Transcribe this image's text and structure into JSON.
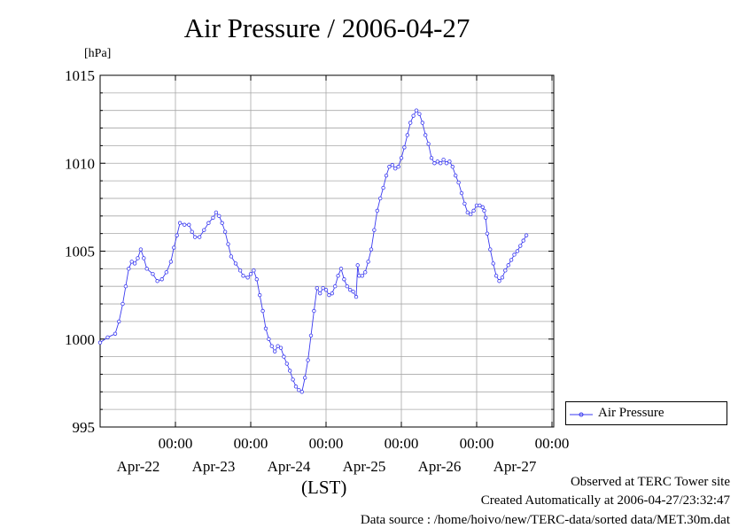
{
  "title": "Air Pressure / 2006-04-27",
  "footer": {
    "line1": "Observed at TERC Tower site",
    "line2": "Created Automatically at 2006-04-27/23:32:47",
    "line3": "Data source : /home/hoivo/new/TERC-data/sorted  data/MET.30m.dat"
  },
  "chart_data": {
    "type": "line",
    "title": "Air Pressure / 2006-04-27",
    "ylabel": "[hPa]",
    "xlabel": "(LST)",
    "ylim": [
      995,
      1015
    ],
    "xlim": [
      -1,
      5
    ],
    "x_unit": "days (00:00 of Apr-22 = 0)",
    "yticks": [
      995,
      1000,
      1005,
      1010,
      1015
    ],
    "xticks": [
      {
        "x": 0,
        "time": "00:00",
        "date": "Apr-22"
      },
      {
        "x": 1,
        "time": "00:00",
        "date": "Apr-23"
      },
      {
        "x": 2,
        "time": "00:00",
        "date": "Apr-24"
      },
      {
        "x": 3,
        "time": "00:00",
        "date": "Apr-25"
      },
      {
        "x": 4,
        "time": "00:00",
        "date": "Apr-26"
      },
      {
        "x": 5,
        "time": "00:00",
        "date": "Apr-27"
      }
    ],
    "grid": true,
    "legend": "right",
    "series": [
      {
        "name": "Air Pressure",
        "color": "#3a3af0",
        "marker": "circle",
        "points": [
          [
            -1.0,
            999.8
          ],
          [
            -0.9,
            1000.1
          ],
          [
            -0.8,
            1000.3
          ],
          [
            -0.75,
            1001.0
          ],
          [
            -0.7,
            1002.0
          ],
          [
            -0.66,
            1003.0
          ],
          [
            -0.62,
            1004.0
          ],
          [
            -0.58,
            1004.4
          ],
          [
            -0.54,
            1004.3
          ],
          [
            -0.5,
            1004.6
          ],
          [
            -0.46,
            1005.1
          ],
          [
            -0.42,
            1004.6
          ],
          [
            -0.38,
            1004.0
          ],
          [
            -0.3,
            1003.7
          ],
          [
            -0.24,
            1003.3
          ],
          [
            -0.18,
            1003.4
          ],
          [
            -0.12,
            1003.8
          ],
          [
            -0.06,
            1004.4
          ],
          [
            -0.02,
            1005.2
          ],
          [
            0.02,
            1005.9
          ],
          [
            0.06,
            1006.6
          ],
          [
            0.12,
            1006.5
          ],
          [
            0.18,
            1006.5
          ],
          [
            0.22,
            1006.1
          ],
          [
            0.26,
            1005.8
          ],
          [
            0.32,
            1005.8
          ],
          [
            0.38,
            1006.2
          ],
          [
            0.44,
            1006.6
          ],
          [
            0.5,
            1006.9
          ],
          [
            0.54,
            1007.2
          ],
          [
            0.58,
            1007.0
          ],
          [
            0.62,
            1006.6
          ],
          [
            0.66,
            1006.1
          ],
          [
            0.7,
            1005.4
          ],
          [
            0.74,
            1004.7
          ],
          [
            0.8,
            1004.3
          ],
          [
            0.86,
            1003.9
          ],
          [
            0.9,
            1003.6
          ],
          [
            0.96,
            1003.5
          ],
          [
            1.0,
            1003.7
          ],
          [
            1.04,
            1003.9
          ],
          [
            1.08,
            1003.4
          ],
          [
            1.12,
            1002.5
          ],
          [
            1.16,
            1001.6
          ],
          [
            1.2,
            1000.6
          ],
          [
            1.24,
            1000.0
          ],
          [
            1.28,
            999.6
          ],
          [
            1.32,
            999.3
          ],
          [
            1.36,
            999.6
          ],
          [
            1.4,
            999.5
          ],
          [
            1.44,
            999.0
          ],
          [
            1.48,
            998.6
          ],
          [
            1.52,
            998.2
          ],
          [
            1.56,
            997.7
          ],
          [
            1.6,
            997.3
          ],
          [
            1.64,
            997.1
          ],
          [
            1.68,
            997.0
          ],
          [
            1.72,
            997.8
          ],
          [
            1.76,
            998.8
          ],
          [
            1.8,
            1000.2
          ],
          [
            1.84,
            1001.6
          ],
          [
            1.88,
            1002.9
          ],
          [
            1.92,
            1002.6
          ],
          [
            1.96,
            1002.9
          ],
          [
            2.0,
            1002.8
          ],
          [
            2.04,
            1002.5
          ],
          [
            2.08,
            1002.6
          ],
          [
            2.12,
            1003.0
          ],
          [
            2.16,
            1003.6
          ],
          [
            2.2,
            1004.0
          ],
          [
            2.24,
            1003.4
          ],
          [
            2.28,
            1003.0
          ],
          [
            2.32,
            1002.8
          ],
          [
            2.36,
            1002.7
          ],
          [
            2.4,
            1002.4
          ],
          [
            2.42,
            1004.2
          ],
          [
            2.44,
            1003.6
          ],
          [
            2.48,
            1003.6
          ],
          [
            2.52,
            1003.8
          ],
          [
            2.56,
            1004.4
          ],
          [
            2.6,
            1005.1
          ],
          [
            2.64,
            1006.2
          ],
          [
            2.68,
            1007.3
          ],
          [
            2.72,
            1008.0
          ],
          [
            2.76,
            1008.6
          ],
          [
            2.8,
            1009.3
          ],
          [
            2.84,
            1009.8
          ],
          [
            2.88,
            1009.9
          ],
          [
            2.92,
            1009.7
          ],
          [
            2.96,
            1009.8
          ],
          [
            3.0,
            1010.3
          ],
          [
            3.04,
            1010.9
          ],
          [
            3.08,
            1011.6
          ],
          [
            3.12,
            1012.3
          ],
          [
            3.16,
            1012.7
          ],
          [
            3.2,
            1013.0
          ],
          [
            3.24,
            1012.8
          ],
          [
            3.28,
            1012.3
          ],
          [
            3.32,
            1011.6
          ],
          [
            3.36,
            1011.1
          ],
          [
            3.4,
            1010.3
          ],
          [
            3.44,
            1010.0
          ],
          [
            3.48,
            1010.1
          ],
          [
            3.52,
            1010.0
          ],
          [
            3.56,
            1010.2
          ],
          [
            3.6,
            1010.0
          ],
          [
            3.64,
            1010.1
          ],
          [
            3.68,
            1009.8
          ],
          [
            3.72,
            1009.3
          ],
          [
            3.76,
            1008.9
          ],
          [
            3.8,
            1008.3
          ],
          [
            3.84,
            1007.7
          ],
          [
            3.88,
            1007.2
          ],
          [
            3.92,
            1007.1
          ],
          [
            3.96,
            1007.3
          ],
          [
            4.0,
            1007.6
          ],
          [
            4.04,
            1007.6
          ],
          [
            4.08,
            1007.5
          ],
          [
            4.1,
            1007.3
          ],
          [
            4.12,
            1006.9
          ],
          [
            4.14,
            1006.0
          ],
          [
            4.18,
            1005.1
          ],
          [
            4.22,
            1004.3
          ],
          [
            4.26,
            1003.6
          ],
          [
            4.3,
            1003.3
          ],
          [
            4.34,
            1003.5
          ],
          [
            4.38,
            1003.9
          ],
          [
            4.42,
            1004.2
          ],
          [
            4.46,
            1004.5
          ],
          [
            4.5,
            1004.8
          ],
          [
            4.54,
            1005.0
          ],
          [
            4.58,
            1005.3
          ],
          [
            4.62,
            1005.6
          ],
          [
            4.66,
            1005.9
          ]
        ]
      }
    ]
  }
}
